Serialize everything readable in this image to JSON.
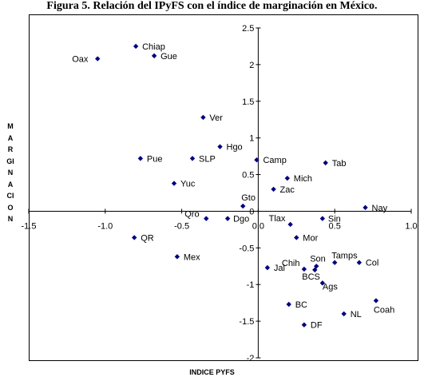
{
  "figure_title": "Figura 5. Relación del IPyFS con el índice de marginación en México.",
  "chart_data": {
    "type": "scatter",
    "xlabel": "INDICE PYFS",
    "ylabel": "MARGINACION",
    "xlim": [
      -1.5,
      1.0
    ],
    "ylim": [
      -2.0,
      2.5
    ],
    "x_ticks": [
      "-1.5",
      "-1.0",
      "-0.5",
      "0.0",
      "0.5",
      "1.0"
    ],
    "y_ticks": [
      "2.5",
      "2",
      "1.5",
      "1",
      "0.5",
      "0",
      "-0.5",
      "-1",
      "-1.5",
      "-2"
    ],
    "grid": false,
    "legend": "none",
    "marker_color": "#000080",
    "points": [
      {
        "label": "Chiap",
        "x": -0.8,
        "y": 2.25
      },
      {
        "label": "Gue",
        "x": -0.68,
        "y": 2.12
      },
      {
        "label": "Oax",
        "x": -1.05,
        "y": 2.08
      },
      {
        "label": "Ver",
        "x": -0.36,
        "y": 1.28
      },
      {
        "label": "Hgo",
        "x": -0.25,
        "y": 0.88
      },
      {
        "label": "Pue",
        "x": -0.77,
        "y": 0.72
      },
      {
        "label": "SLP",
        "x": -0.43,
        "y": 0.72
      },
      {
        "label": "Camp",
        "x": -0.01,
        "y": 0.7
      },
      {
        "label": "Tab",
        "x": 0.44,
        "y": 0.66
      },
      {
        "label": "Mich",
        "x": 0.19,
        "y": 0.45
      },
      {
        "label": "Yuc",
        "x": -0.55,
        "y": 0.38
      },
      {
        "label": "Zac",
        "x": 0.1,
        "y": 0.3
      },
      {
        "label": "Gto",
        "x": -0.1,
        "y": 0.07
      },
      {
        "label": "Nay",
        "x": 0.7,
        "y": 0.05
      },
      {
        "label": "Qro",
        "x": -0.34,
        "y": -0.1
      },
      {
        "label": "Dgo",
        "x": -0.2,
        "y": -0.1
      },
      {
        "label": "Tlax",
        "x": 0.21,
        "y": -0.18
      },
      {
        "label": "Sin",
        "x": 0.42,
        "y": -0.1
      },
      {
        "label": "QR",
        "x": -0.81,
        "y": -0.36
      },
      {
        "label": "Mor",
        "x": 0.25,
        "y": -0.36
      },
      {
        "label": "Mex",
        "x": -0.53,
        "y": -0.62
      },
      {
        "label": "Tamps",
        "x": 0.5,
        "y": -0.7
      },
      {
        "label": "Col",
        "x": 0.66,
        "y": -0.7
      },
      {
        "label": "Son",
        "x": 0.38,
        "y": -0.75
      },
      {
        "label": "Jal",
        "x": 0.06,
        "y": -0.77
      },
      {
        "label": "Chih",
        "x": 0.3,
        "y": -0.79
      },
      {
        "label": "BCS",
        "x": 0.37,
        "y": -0.8
      },
      {
        "label": "Ags",
        "x": 0.42,
        "y": -0.98
      },
      {
        "label": "BC",
        "x": 0.2,
        "y": -1.27
      },
      {
        "label": "Coah",
        "x": 0.77,
        "y": -1.22
      },
      {
        "label": "NL",
        "x": 0.56,
        "y": -1.4
      },
      {
        "label": "DF",
        "x": 0.3,
        "y": -1.55
      }
    ]
  }
}
